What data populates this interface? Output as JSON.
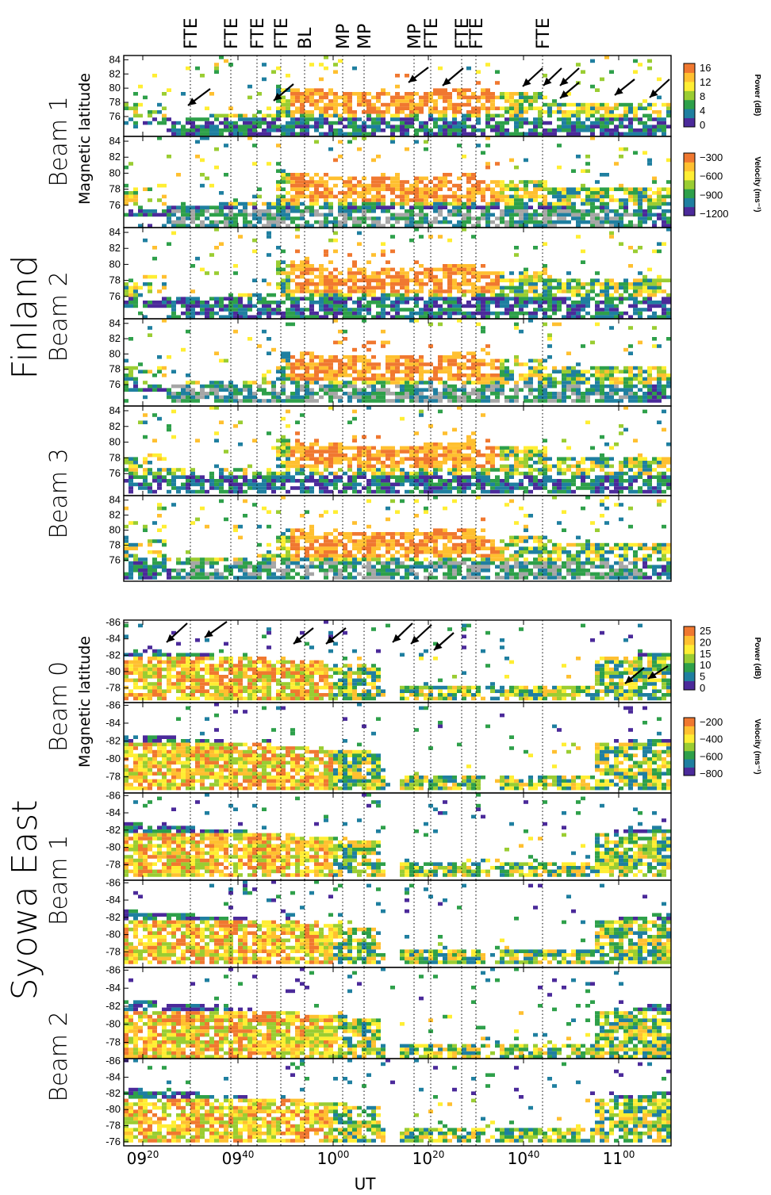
{
  "chart_data": {
    "type": "heatmap",
    "xaxis": {
      "label": "UT",
      "ticks": [
        {
          "value": 0,
          "hh": "09",
          "mm": "20"
        },
        {
          "value": 20,
          "hh": "09",
          "mm": "40"
        },
        {
          "value": 40,
          "hh": "10",
          "mm": "00"
        },
        {
          "value": 60,
          "hh": "10",
          "mm": "20"
        },
        {
          "value": 80,
          "hh": "10",
          "mm": "40"
        },
        {
          "value": 100,
          "hh": "11",
          "mm": "00"
        }
      ],
      "range_minutes_from_0920": [
        -4,
        111
      ]
    },
    "events": [
      {
        "label": "FTE",
        "minute": 10
      },
      {
        "label": "FTE",
        "minute": 18.5
      },
      {
        "label": "FTE",
        "minute": 24
      },
      {
        "label": "FTE",
        "minute": 29
      },
      {
        "label": "BL",
        "minute": 34
      },
      {
        "label": "MP",
        "minute": 42
      },
      {
        "label": "MP",
        "minute": 46.5
      },
      {
        "label": "MP",
        "minute": 57
      },
      {
        "label": "FTE",
        "minute": 60.5
      },
      {
        "label": "FTE",
        "minute": 67
      },
      {
        "label": "FTE",
        "minute": 70
      },
      {
        "label": "FTE",
        "minute": 84
      }
    ],
    "group_labels": {
      "finland": "Finland",
      "syowa": "Syowa East"
    },
    "ylabel": "Magnetic latitude",
    "beam_labels": {
      "finland": [
        "Beam 1",
        "Beam 2",
        "Beam 3"
      ],
      "syowa": [
        "Beam 0",
        "Beam 1",
        "Beam 2"
      ]
    },
    "finland_yticks": [
      "84",
      "82",
      "80",
      "78",
      "76"
    ],
    "syowa_yticks": [
      "-86",
      "-84",
      "-82",
      "-80",
      "-78"
    ],
    "syowa_yticks_b2v": [
      "-86",
      "-84",
      "-82",
      "-80",
      "-78",
      "-76"
    ],
    "colorbars": {
      "finland_power": {
        "title": "Power (dB)",
        "ticks": [
          "16",
          "12",
          "8",
          "4",
          "0"
        ],
        "range": [
          0,
          18
        ]
      },
      "finland_velocity": {
        "title": "Velocity (ms⁻¹)",
        "ticks": [
          "−300",
          "−600",
          "−900",
          "−1200"
        ],
        "range": [
          -1400,
          -100
        ]
      },
      "syowa_power": {
        "title": "Power (dB)",
        "ticks": [
          "25",
          "20",
          "15",
          "10",
          "5",
          "0"
        ],
        "range": [
          0,
          27
        ]
      },
      "syowa_velocity": {
        "title": "Velocity (ms⁻¹)",
        "ticks": [
          "−200",
          "−400",
          "−600",
          "−800"
        ],
        "range": [
          -900,
          -100
        ]
      }
    },
    "color_scale": [
      "#4b2a9a",
      "#1f7fa0",
      "#2ea04a",
      "#9acd32",
      "#ffee33",
      "#ffc030",
      "#f07830"
    ],
    "ground_scatter_color": "#a6a6a6"
  }
}
